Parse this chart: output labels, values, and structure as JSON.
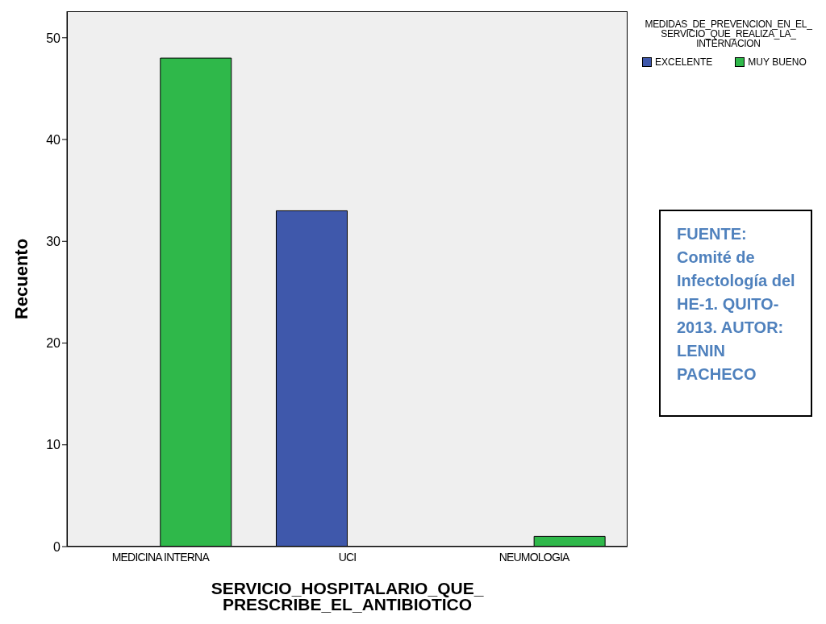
{
  "chart_data": {
    "type": "bar",
    "xlabel": "SERVICIO_HOSPITALARIO_QUE_PRESCRIBE_EL_ANTIBIOTICO",
    "ylabel": "Recuento",
    "legend_title": "MEDIDAS_DE_PREVENCION_EN_EL_SERVICIO_QUE_REALIZA_LA_INTERNACION",
    "categories": [
      "MEDICINA INTERNA",
      "UCI",
      "NEUMOLOGIA"
    ],
    "series": [
      {
        "name": "EXCELENTE",
        "color": "#3f58ab",
        "values": [
          null,
          33,
          null
        ]
      },
      {
        "name": "MUY BUENO",
        "color": "#2fb84a",
        "values": [
          48,
          null,
          1
        ]
      }
    ],
    "ylim": [
      0,
      52.6
    ],
    "yticks": [
      0,
      10,
      20,
      30,
      40,
      50
    ],
    "grid": false,
    "legend": "top right",
    "annotations": [
      "FUENTE: Comité de Infectología del HE-1. QUITO-2013. AUTOR: LENIN PACHECO"
    ]
  }
}
